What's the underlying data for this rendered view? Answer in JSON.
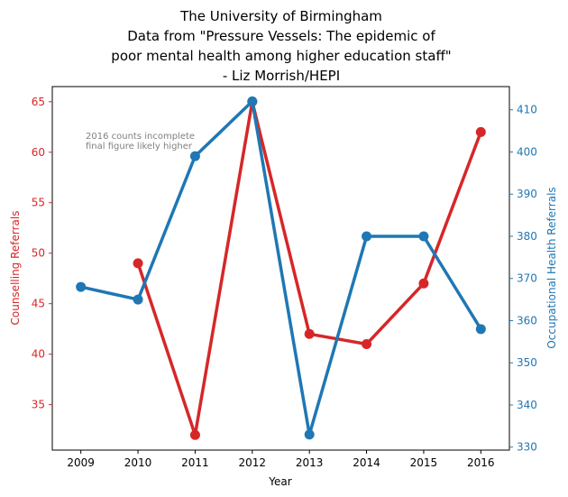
{
  "chart_data": {
    "type": "line",
    "title": [
      "The University of Birmingham",
      "Data from \"Pressure Vessels: The epidemic of",
      "poor mental health among higher education staff\"",
      "- Liz Morrish/HEPI"
    ],
    "xlabel": "Year",
    "ylabel_left": "Counselling Referrals",
    "ylabel_right": "Occupational Health Referrals",
    "x": [
      2009,
      2010,
      2011,
      2012,
      2013,
      2014,
      2015,
      2016
    ],
    "x_ticks": [
      "2009",
      "2010",
      "2011",
      "2012",
      "2013",
      "2014",
      "2015",
      "2016"
    ],
    "y_left_ticks": [
      "35",
      "40",
      "45",
      "50",
      "55",
      "60",
      "65"
    ],
    "y_right_ticks": [
      "330",
      "340",
      "350",
      "360",
      "370",
      "380",
      "390",
      "400",
      "410"
    ],
    "ylim_left": [
      30.5,
      66.5
    ],
    "ylim_right": [
      329.3,
      415.5
    ],
    "grid": false,
    "series": [
      {
        "axis": "left",
        "color": "#d62728",
        "x": [
          2010,
          2011,
          2012,
          2013,
          2014,
          2015,
          2016
        ],
        "values": [
          49,
          32,
          65,
          42,
          41,
          47,
          62
        ]
      },
      {
        "axis": "right",
        "color": "#1f77b4",
        "x": [
          2009,
          2010,
          2011,
          2012,
          2013,
          2014,
          2015,
          2016
        ],
        "values": [
          368,
          365,
          399,
          412,
          333,
          380,
          380,
          358
        ]
      }
    ],
    "annotation": [
      "2016 counts incomplete",
      "final figure likely higher"
    ]
  }
}
